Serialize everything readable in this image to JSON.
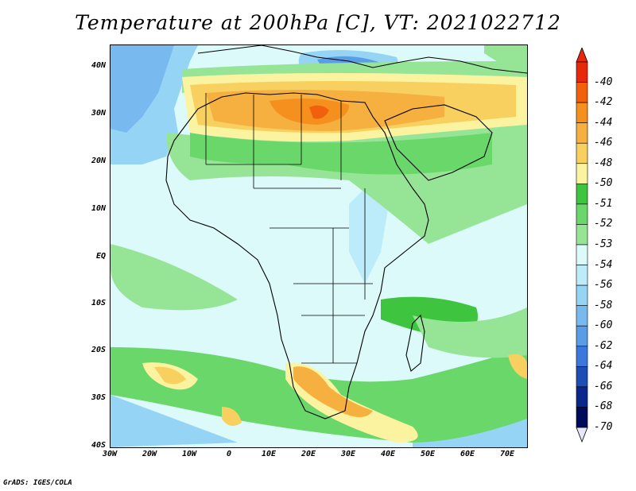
{
  "title": "Temperature at 200hPa [C], VT: 2021022712",
  "credit": "GrADS: IGES/COLA",
  "lat_ticks": [
    "40N",
    "30N",
    "20N",
    "10N",
    "EQ",
    "10S",
    "20S",
    "30S",
    "40S"
  ],
  "lon_ticks": [
    "30W",
    "20W",
    "10W",
    "0",
    "10E",
    "20E",
    "30E",
    "40E",
    "50E",
    "60E",
    "70E"
  ],
  "colorbar": {
    "labels": [
      "-40",
      "-42",
      "-44",
      "-46",
      "-48",
      "-50",
      "-51",
      "-52",
      "-53",
      "-54",
      "-56",
      "-58",
      "-60",
      "-62",
      "-64",
      "-66",
      "-68",
      "-70"
    ],
    "colors": [
      "#e8280b",
      "#f2600c",
      "#f5901e",
      "#f6b040",
      "#f8d060",
      "#fcf3a0",
      "#3ec43e",
      "#6ad76a",
      "#96e596",
      "#dcfafa",
      "#bcebfa",
      "#96d4f5",
      "#78baf0",
      "#5a9ce6",
      "#3c78dc",
      "#1e4eb4",
      "#0a288c",
      "#000a5a"
    ]
  },
  "map": {
    "extent": {
      "lon_min": -30,
      "lon_max": 75,
      "lat_min": -40,
      "lat_max": 45
    },
    "variable": "Temperature at 200hPa",
    "units": "C"
  }
}
